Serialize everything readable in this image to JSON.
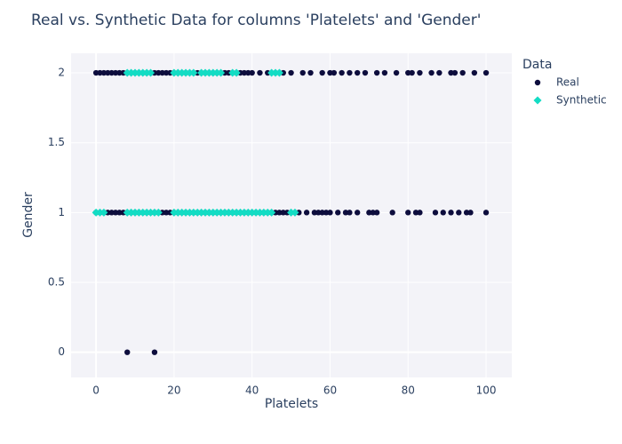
{
  "chart_data": {
    "type": "scatter",
    "title": "Real vs. Synthetic Data for columns 'Platelets' and 'Gender'",
    "xlabel": "Platelets",
    "ylabel": "Gender",
    "legend_title": "Data",
    "xlim": [
      -6.4,
      106.6
    ],
    "ylim": [
      -0.18,
      2.14
    ],
    "xticks": [
      0,
      20,
      40,
      60,
      80,
      100
    ],
    "yticks": [
      0,
      0.5,
      1,
      1.5,
      2
    ],
    "grid": true,
    "legend": "right",
    "series": [
      {
        "name": "Real",
        "color": "#0d0d3d",
        "symbol": "circle",
        "x": [
          0,
          1,
          2,
          3,
          4,
          5,
          6,
          7,
          8,
          9,
          10,
          11,
          12,
          13,
          14,
          15,
          16,
          17,
          18,
          19,
          20,
          21,
          22,
          23,
          24,
          25,
          26,
          27,
          28,
          29,
          30,
          31,
          32,
          33,
          34,
          35,
          36,
          37,
          38,
          39,
          40,
          42,
          44,
          46,
          48,
          50,
          53,
          55,
          58,
          60,
          61,
          63,
          65,
          67,
          69,
          72,
          74,
          77,
          80,
          81,
          83,
          86,
          88,
          91,
          92,
          94,
          97,
          100,
          0,
          1,
          2,
          3,
          4,
          5,
          6,
          7,
          8,
          9,
          10,
          11,
          12,
          13,
          14,
          15,
          16,
          17,
          18,
          19,
          20,
          21,
          22,
          23,
          24,
          25,
          26,
          27,
          28,
          29,
          30,
          31,
          32,
          33,
          34,
          35,
          36,
          37,
          38,
          39,
          40,
          41,
          42,
          43,
          44,
          45,
          46,
          47,
          48,
          49,
          50,
          52,
          54,
          56,
          57,
          58,
          59,
          60,
          62,
          64,
          65,
          67,
          70,
          71,
          72,
          76,
          80,
          82,
          83,
          87,
          89,
          91,
          93,
          95,
          96,
          100,
          8,
          15
        ],
        "y": [
          2,
          2,
          2,
          2,
          2,
          2,
          2,
          2,
          2,
          2,
          2,
          2,
          2,
          2,
          2,
          2,
          2,
          2,
          2,
          2,
          2,
          2,
          2,
          2,
          2,
          2,
          2,
          2,
          2,
          2,
          2,
          2,
          2,
          2,
          2,
          2,
          2,
          2,
          2,
          2,
          2,
          2,
          2,
          2,
          2,
          2,
          2,
          2,
          2,
          2,
          2,
          2,
          2,
          2,
          2,
          2,
          2,
          2,
          2,
          2,
          2,
          2,
          2,
          2,
          2,
          2,
          2,
          2,
          1,
          1,
          1,
          1,
          1,
          1,
          1,
          1,
          1,
          1,
          1,
          1,
          1,
          1,
          1,
          1,
          1,
          1,
          1,
          1,
          1,
          1,
          1,
          1,
          1,
          1,
          1,
          1,
          1,
          1,
          1,
          1,
          1,
          1,
          1,
          1,
          1,
          1,
          1,
          1,
          1,
          1,
          1,
          1,
          1,
          1,
          1,
          1,
          1,
          1,
          1,
          1,
          1,
          1,
          1,
          1,
          1,
          1,
          1,
          1,
          1,
          1,
          1,
          1,
          1,
          1,
          1,
          1,
          1,
          1,
          1,
          1,
          1,
          1,
          1,
          1,
          0,
          0
        ]
      },
      {
        "name": "Synthetic",
        "color": "#13dcc4",
        "symbol": "diamond",
        "x": [
          8,
          9,
          10,
          11,
          12,
          13,
          14,
          20,
          21,
          22,
          23,
          24,
          25,
          27,
          28,
          29,
          30,
          31,
          32,
          35,
          36,
          45,
          46,
          47,
          0,
          1,
          2,
          8,
          9,
          10,
          11,
          12,
          13,
          14,
          15,
          16,
          20,
          21,
          22,
          23,
          24,
          25,
          26,
          27,
          28,
          29,
          30,
          31,
          32,
          33,
          34,
          35,
          36,
          37,
          38,
          39,
          40,
          41,
          42,
          43,
          44,
          45,
          50,
          51
        ],
        "y": [
          2,
          2,
          2,
          2,
          2,
          2,
          2,
          2,
          2,
          2,
          2,
          2,
          2,
          2,
          2,
          2,
          2,
          2,
          2,
          2,
          2,
          2,
          2,
          2,
          1,
          1,
          1,
          1,
          1,
          1,
          1,
          1,
          1,
          1,
          1,
          1,
          1,
          1,
          1,
          1,
          1,
          1,
          1,
          1,
          1,
          1,
          1,
          1,
          1,
          1,
          1,
          1,
          1,
          1,
          1,
          1,
          1,
          1,
          1,
          1,
          1,
          1,
          1,
          1
        ]
      }
    ]
  }
}
